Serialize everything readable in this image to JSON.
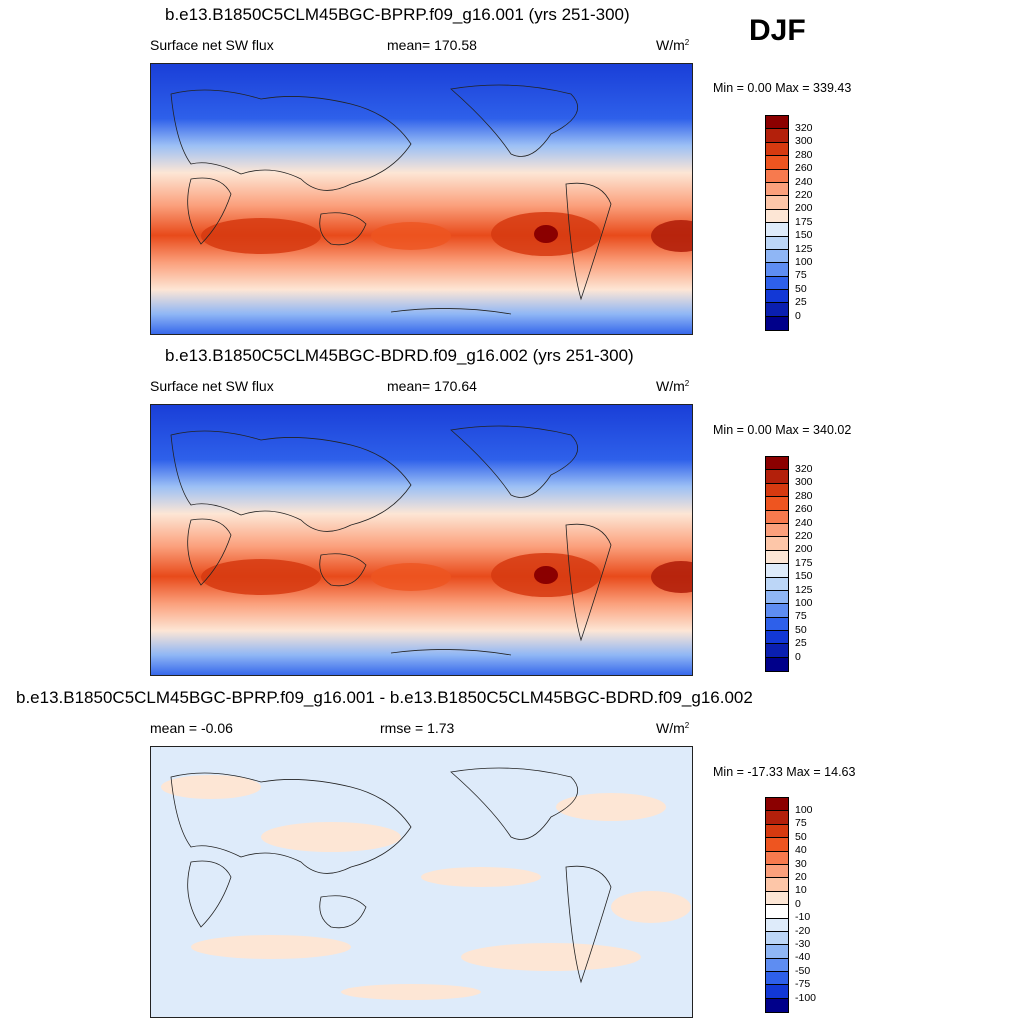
{
  "season": "DJF",
  "panels": [
    {
      "title": "b.e13.B1850C5CLM45BGC-BPRP.f09_g16.001 (yrs 251-300)",
      "left_label": "Surface net SW flux",
      "center_label": "mean= 170.58",
      "units": "W/m",
      "units_sup": "2",
      "minmax": "Min =   0.00 Max = 339.43",
      "colorbar": {
        "labels": [
          "320",
          "300",
          "280",
          "260",
          "240",
          "220",
          "200",
          "175",
          "150",
          "125",
          "100",
          "75",
          "50",
          "25",
          "0"
        ],
        "colors": [
          "#8b0000",
          "#b3200b",
          "#d63a10",
          "#ee5520",
          "#f77a4e",
          "#fba07c",
          "#fdc6a8",
          "#fde6d5",
          "#deebfa",
          "#bcd6f7",
          "#8fb6f5",
          "#5e8df2",
          "#2e60ea",
          "#1238d6",
          "#0a1fb0",
          "#00008a"
        ]
      }
    },
    {
      "title": "b.e13.B1850C5CLM45BGC-BDRD.f09_g16.002 (yrs 251-300)",
      "left_label": "Surface net SW flux",
      "center_label": "mean= 170.64",
      "units": "W/m",
      "units_sup": "2",
      "minmax": "Min =   0.00 Max = 340.02",
      "colorbar": {
        "labels": [
          "320",
          "300",
          "280",
          "260",
          "240",
          "220",
          "200",
          "175",
          "150",
          "125",
          "100",
          "75",
          "50",
          "25",
          "0"
        ],
        "colors": [
          "#8b0000",
          "#b3200b",
          "#d63a10",
          "#ee5520",
          "#f77a4e",
          "#fba07c",
          "#fdc6a8",
          "#fde6d5",
          "#deebfa",
          "#bcd6f7",
          "#8fb6f5",
          "#5e8df2",
          "#2e60ea",
          "#1238d6",
          "#0a1fb0",
          "#00008a"
        ]
      }
    },
    {
      "title": "b.e13.B1850C5CLM45BGC-BPRP.f09_g16.001 - b.e13.B1850C5CLM45BGC-BDRD.f09_g16.002",
      "left_label": "mean =  -0.06",
      "center_label": "rmse =   1.73",
      "units": "W/m",
      "units_sup": "2",
      "minmax": "Min = -17.33 Max =  14.63",
      "colorbar": {
        "labels": [
          "100",
          "75",
          "50",
          "40",
          "30",
          "20",
          "10",
          "0",
          "-10",
          "-20",
          "-30",
          "-40",
          "-50",
          "-75",
          "-100"
        ],
        "colors": [
          "#8b0000",
          "#b3200b",
          "#d63a10",
          "#ee5520",
          "#f77a4e",
          "#fba07c",
          "#fdc6a8",
          "#fde6d5",
          "#ffffff",
          "#deebfa",
          "#bcd6f7",
          "#8fb6f5",
          "#5e8df2",
          "#2e60ea",
          "#1238d6",
          "#00008a"
        ]
      }
    }
  ]
}
